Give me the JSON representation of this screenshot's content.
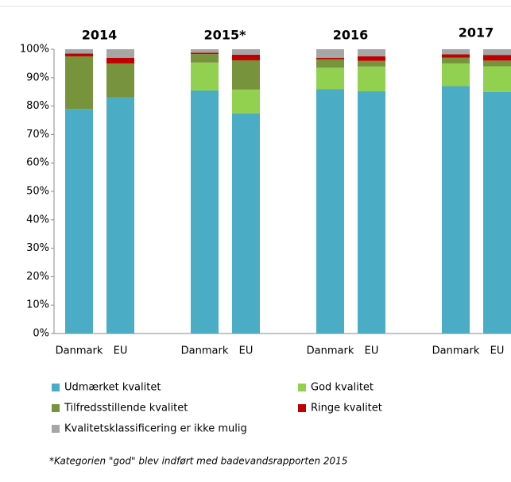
{
  "chart_data": {
    "type": "stacked_bar",
    "groups": [
      "2014",
      "2015*",
      "2016",
      "2017"
    ],
    "categories": [
      "Danmark",
      "EU",
      "Danmark",
      "EU",
      "Danmark",
      "EU",
      "Danmark",
      "EU"
    ],
    "series": [
      {
        "name": "Udmærket kvalitet",
        "color": "#4bacc6",
        "values": [
          79,
          83,
          85.5,
          77.4,
          86,
          85.2,
          87,
          85
        ]
      },
      {
        "name": "God kvalitet",
        "color": "#92d050",
        "values": [
          0,
          0,
          9.8,
          8.4,
          7.5,
          8.7,
          8,
          9
        ]
      },
      {
        "name": "Tilfredsstillende kvalitet",
        "color": "#77933c",
        "values": [
          18.5,
          12,
          3,
          10.3,
          3,
          2,
          2,
          2
        ]
      },
      {
        "name": "Ringe kvalitet",
        "color": "#c00000",
        "values": [
          1,
          2,
          0.5,
          2,
          0.5,
          1.6,
          1.2,
          2
        ]
      },
      {
        "name": "Kvalitetsklassificering er ikke mulig",
        "color": "#a6a6a6",
        "values": [
          1.5,
          3,
          1.2,
          1.9,
          3,
          2.5,
          1.8,
          2
        ]
      }
    ],
    "ylim": [
      0,
      100
    ],
    "yticks": [
      {
        "value": 0,
        "label": "0%"
      },
      {
        "value": 10,
        "label": "10%"
      },
      {
        "value": 20,
        "label": "20%"
      },
      {
        "value": 30,
        "label": "30%"
      },
      {
        "value": 40,
        "label": "40%"
      },
      {
        "value": 50,
        "label": "50%"
      },
      {
        "value": 60,
        "label": "60%"
      },
      {
        "value": 70,
        "label": "70%"
      },
      {
        "value": 80,
        "label": "80%"
      },
      {
        "value": 90,
        "label": "90%"
      },
      {
        "value": 100,
        "label": "100%"
      }
    ],
    "grid": false,
    "footnote": "*Kategorien  \"god\" blev indført med badevandsrapporten  2015"
  }
}
